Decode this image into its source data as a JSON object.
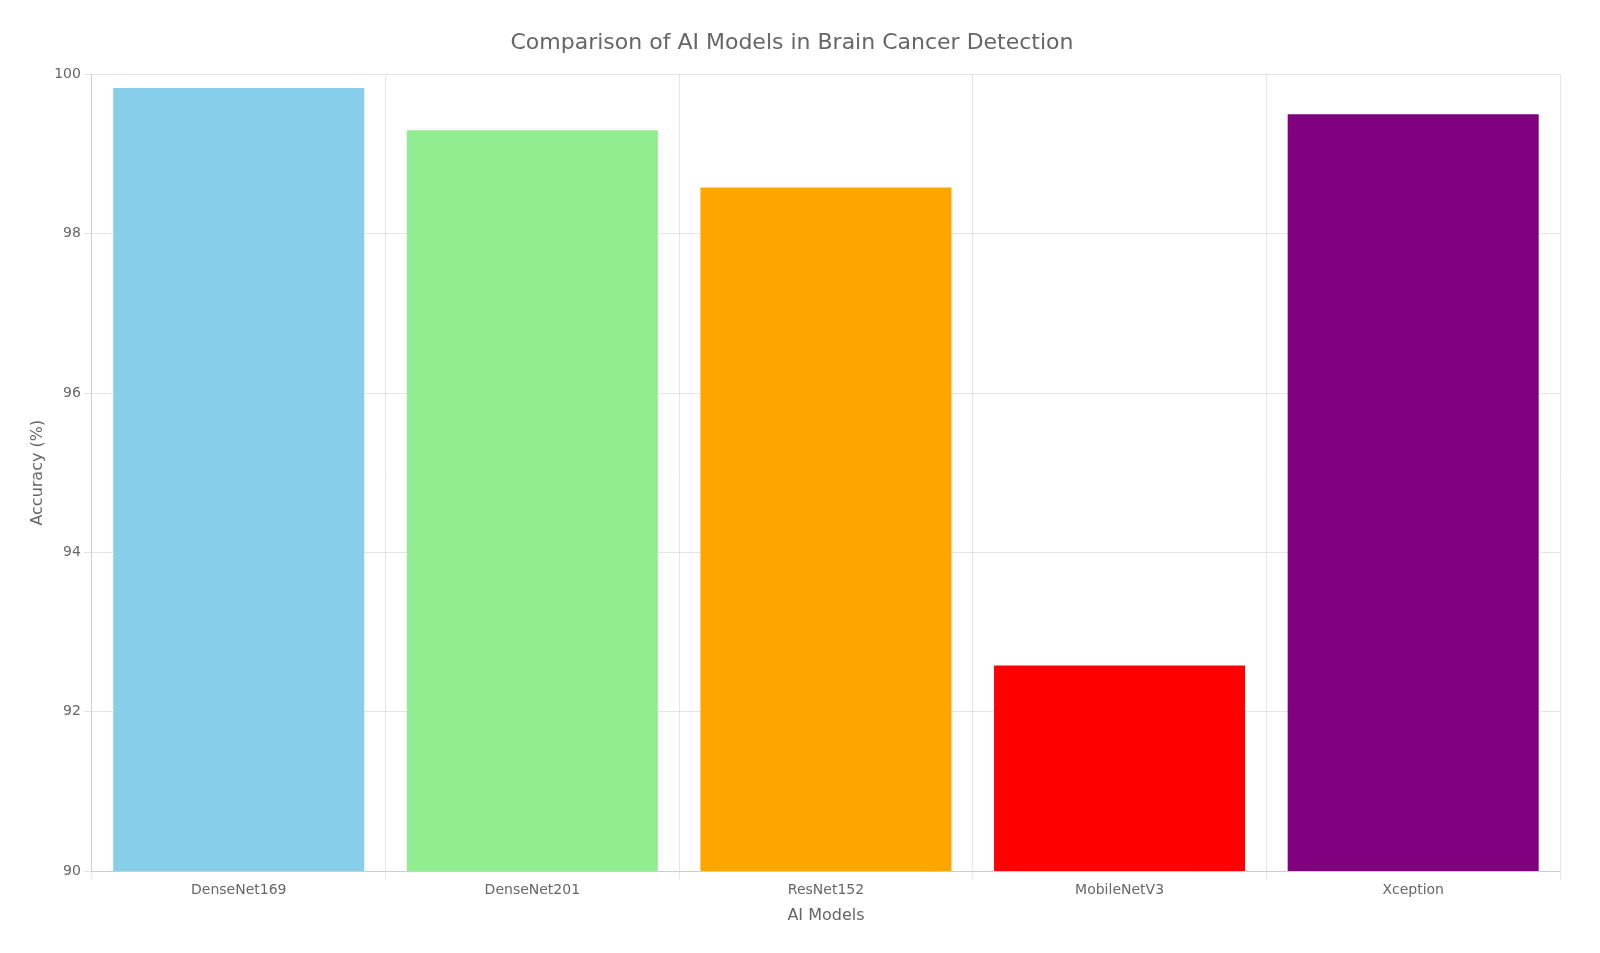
{
  "chart_data": {
    "type": "bar",
    "title": "Comparison of AI Models in Brain Cancer Detection",
    "xlabel": "AI Models",
    "ylabel": "Accuracy (%)",
    "categories": [
      "DenseNet169",
      "DenseNet201",
      "ResNet152",
      "MobileNetV3",
      "Xception"
    ],
    "values": [
      99.83,
      99.3,
      98.58,
      92.58,
      99.5
    ],
    "colors": [
      "#87CEEB",
      "#90EE90",
      "#FFA500",
      "#FF0000",
      "#800080"
    ],
    "ylim": [
      90,
      100
    ],
    "yticks": [
      90,
      92,
      94,
      96,
      98,
      100
    ],
    "grid": true
  }
}
